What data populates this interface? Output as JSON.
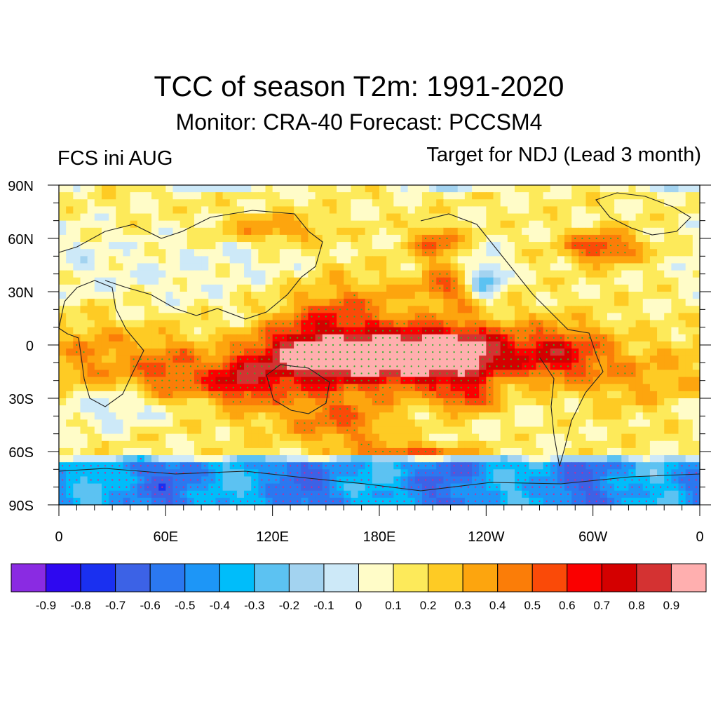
{
  "title": "TCC of season T2m: 1991-2020",
  "subtitle": "Monitor: CRA-40   Forecast: PCCSM4",
  "left_label": "FCS ini AUG",
  "right_label": "Target for NDJ (Lead 3 month)",
  "lat_ticks": [
    "90N",
    "60N",
    "30N",
    "0",
    "30S",
    "60S",
    "90S"
  ],
  "lon_ticks": [
    "0",
    "60E",
    "120E",
    "180E",
    "120W",
    "60W",
    "0"
  ],
  "colorbar": {
    "colors": [
      "#8a2be2",
      "#2e08f0",
      "#1a30f0",
      "#3c62e6",
      "#2b78f0",
      "#1d96f7",
      "#00bdfa",
      "#5cc2f2",
      "#a3d3f0",
      "#cde9f8",
      "#fffcc8",
      "#fdea5a",
      "#fecb24",
      "#fda50e",
      "#fb7d08",
      "#fa4a08",
      "#fa0000",
      "#d40000",
      "#d43232",
      "#ffafaf"
    ],
    "labels": [
      "-0.9",
      "-0.8",
      "-0.7",
      "-0.6",
      "-0.5",
      "-0.4",
      "-0.3",
      "-0.2",
      "-0.1",
      "0",
      "0.1",
      "0.2",
      "0.3",
      "0.4",
      "0.5",
      "0.6",
      "0.7",
      "0.8",
      "0.9"
    ]
  },
  "stipple_colors": {
    "positive": "#2bb02b",
    "negative": "#e0208c"
  }
}
